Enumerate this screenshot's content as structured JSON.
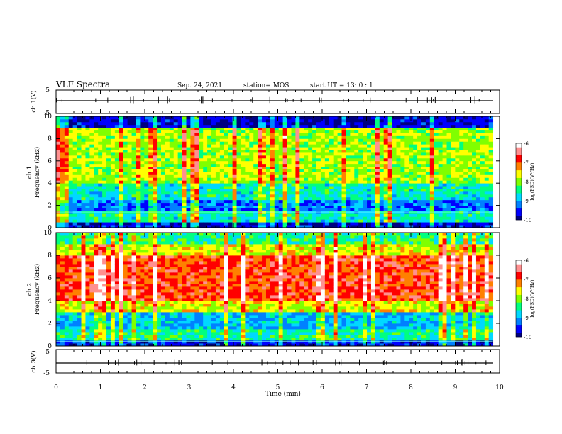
{
  "header": {
    "title": "VLF Spectra",
    "date": "Sep. 24, 2021",
    "station": "station= MOS",
    "start": "start  UT =   13: 0  : 1"
  },
  "chart_data": [
    {
      "type": "line",
      "panel": "ch1-waveform",
      "ylabel": "ch.1(V)",
      "ylim": [
        -5,
        5
      ],
      "yticks": [
        "5",
        "-5"
      ],
      "series": [
        {
          "values_note_free": true,
          "y": [
            -0.3
          ]
        }
      ]
    },
    {
      "type": "heatmap",
      "panel": "ch1-spectrogram",
      "ylabel": "ch.1\nFrequency (kHz)",
      "ylabel_line1": "ch.1",
      "ylabel_line2": "Frequency (kHz)",
      "ylim": [
        0,
        10
      ],
      "yticks": [
        "0",
        "2",
        "4",
        "6",
        "8",
        "10"
      ],
      "colorbar": {
        "label": "log(PSD)(V²/Hz)",
        "range": [
          -10,
          -6
        ],
        "ticks": [
          "-6",
          "-7",
          "-8",
          "-9",
          "-10"
        ]
      },
      "band_log_psd": [
        {
          "freq": [
            0,
            0.5
          ],
          "level": -9.7
        },
        {
          "freq": [
            0.5,
            1.5
          ],
          "level": -8.6
        },
        {
          "freq": [
            1.5,
            2.5
          ],
          "level": -9.3
        },
        {
          "freq": [
            2.5,
            4
          ],
          "level": -8.6
        },
        {
          "freq": [
            4,
            9
          ],
          "level": -7.9
        },
        {
          "freq": [
            9,
            10
          ],
          "level": -9.8
        }
      ]
    },
    {
      "type": "heatmap",
      "panel": "ch2-spectrogram",
      "ylabel_line1": "ch.2",
      "ylabel_line2": "Frequency (kHz)",
      "ylim": [
        0,
        10
      ],
      "yticks": [
        "0",
        "2",
        "4",
        "6",
        "8",
        "10"
      ],
      "colorbar": {
        "label": "log(PSD)(V²/Hz)",
        "range": [
          -10,
          -6
        ],
        "ticks": [
          "-6",
          "-7",
          "-8",
          "-9",
          "-10"
        ]
      },
      "band_log_psd": [
        {
          "freq": [
            0,
            0.4
          ],
          "level": -9.6
        },
        {
          "freq": [
            0.4,
            1.5
          ],
          "level": -8.5
        },
        {
          "freq": [
            1.5,
            3
          ],
          "level": -8.9
        },
        {
          "freq": [
            3,
            4
          ],
          "level": -7.7
        },
        {
          "freq": [
            4,
            8
          ],
          "level": -6.9
        },
        {
          "freq": [
            8,
            9
          ],
          "level": -7.7
        },
        {
          "freq": [
            9,
            10
          ],
          "level": -8.4
        }
      ]
    },
    {
      "type": "line",
      "panel": "ch3-waveform",
      "ylabel": "ch.3(V)",
      "ylim": [
        -5,
        5
      ],
      "yticks": [
        "5",
        "-5"
      ],
      "series": [
        {
          "y": [
            -0.3
          ]
        }
      ]
    }
  ],
  "xaxis": {
    "label": "Time  (min)",
    "range": [
      0,
      10
    ],
    "data_end": 9.85,
    "ticks": [
      "0",
      "1",
      "2",
      "3",
      "4",
      "5",
      "6",
      "7",
      "8",
      "9",
      "10"
    ]
  },
  "colors": {
    "colormap": [
      "#000080",
      "#0000ff",
      "#0080ff",
      "#00d8ff",
      "#00ff80",
      "#80ff00",
      "#ffff00",
      "#ff8000",
      "#ff0000",
      "#ff9090",
      "#ffffff"
    ]
  }
}
